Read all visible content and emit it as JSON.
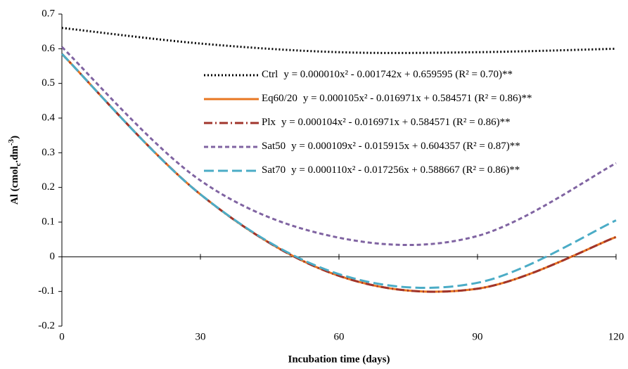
{
  "chart_data": {
    "type": "line",
    "x_label": "Incubation time (days)",
    "y_label": [
      "Al (cmol",
      "c",
      ".dm",
      "-3",
      ")"
    ],
    "x": [
      0,
      30,
      60,
      90,
      120
    ],
    "xlim": [
      0,
      120
    ],
    "xticks": [
      0,
      30,
      60,
      90,
      120
    ],
    "ylim": [
      -0.2,
      0.7
    ],
    "yticks": [
      -0.2,
      -0.1,
      0,
      0.1,
      0.2,
      0.3,
      0.4,
      0.5,
      0.6,
      0.7
    ],
    "series": [
      {
        "name": "Ctrl",
        "equation": "y = 0.000010x² - 0.001742x + 0.659595  (R² = 0.70)**",
        "color": "#000000",
        "dash": "dotted",
        "values": [
          0.66,
          0.615,
          0.59,
          0.59,
          0.6
        ]
      },
      {
        "name": "Eq60/20",
        "equation": "y = 0.000105x² - 0.016971x + 0.584571  (R² = 0.86)**",
        "color": "#e87722",
        "dash": "solid",
        "values": [
          0.585,
          0.18,
          -0.055,
          -0.092,
          0.057
        ]
      },
      {
        "name": "Plx",
        "equation": "y = 0.000104x² - 0.016971x + 0.584571  (R² = 0.86)**",
        "color": "#a0342b",
        "dash": "dashdot",
        "values": [
          0.585,
          0.18,
          -0.055,
          -0.092,
          0.057
        ]
      },
      {
        "name": "Sat50",
        "equation": "y = 0.000109x² - 0.015915x + 0.604357  (R² = 0.87)**",
        "color": "#8064a2",
        "dash": "dashed",
        "values": [
          0.605,
          0.22,
          0.055,
          0.06,
          0.27
        ]
      },
      {
        "name": "Sat70",
        "equation": "y = 0.000110x² - 0.017256x + 0.588667  (R² = 0.86)**",
        "color": "#4bacc6",
        "dash": "longdash",
        "values": [
          0.585,
          0.18,
          -0.05,
          -0.075,
          0.105
        ]
      }
    ]
  }
}
